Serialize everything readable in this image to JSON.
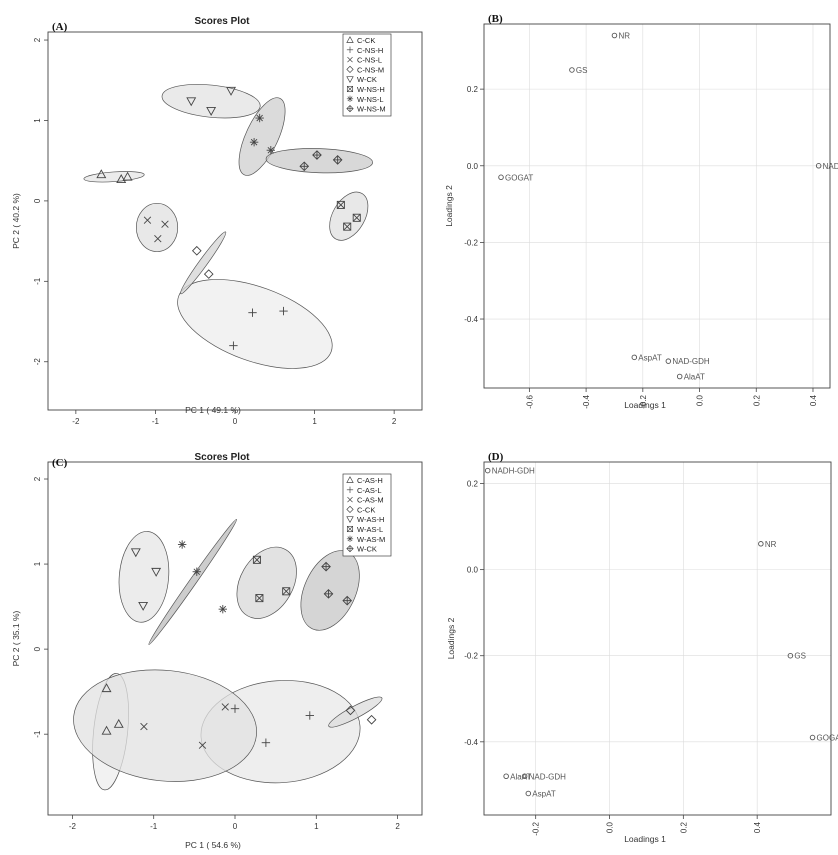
{
  "chart_data": [
    {
      "panel": "(A)",
      "type": "scatter",
      "title": "Scores Plot",
      "xlabel": "PC 1 ( 49.1 %)",
      "ylabel": "PC 2 ( 40.2 %)",
      "xlim": [
        -2.35,
        2.35
      ],
      "ylim": [
        -2.6,
        2.1
      ],
      "xticks": [
        -2,
        -1,
        0,
        1,
        2
      ],
      "yticks": [
        -2,
        -1,
        0,
        1,
        2
      ],
      "grid": false,
      "legend_position": "top-right",
      "legend": [
        {
          "label": "C-CK",
          "marker": "triangle"
        },
        {
          "label": "C-NS-H",
          "marker": "plus"
        },
        {
          "label": "C-NS-L",
          "marker": "cross"
        },
        {
          "label": "C-NS-M",
          "marker": "diamond"
        },
        {
          "label": "W-CK",
          "marker": "triangle-down"
        },
        {
          "label": "W-NS-H",
          "marker": "boxed-x"
        },
        {
          "label": "W-NS-L",
          "marker": "star"
        },
        {
          "label": "W-NS-M",
          "marker": "boxed-diamond"
        }
      ],
      "series": [
        {
          "name": "C-CK",
          "marker": "triangle",
          "points": [
            [
              -1.68,
              0.33
            ],
            [
              -1.43,
              0.27
            ],
            [
              -1.35,
              0.3
            ]
          ],
          "ellipse": {
            "cx": -1.52,
            "cy": 0.3,
            "rx": 0.38,
            "ry": 0.06,
            "angle": -4,
            "fill": "#e6e6e6"
          }
        },
        {
          "name": "C-NS-H",
          "marker": "plus",
          "points": [
            [
              -0.02,
              -1.8
            ],
            [
              0.22,
              -1.39
            ],
            [
              0.61,
              -1.37
            ]
          ],
          "ellipse": {
            "cx": 0.25,
            "cy": -1.53,
            "rx": 1.02,
            "ry": 0.46,
            "angle": 20,
            "fill": "#eeeeee"
          }
        },
        {
          "name": "C-NS-L",
          "marker": "cross",
          "points": [
            [
              -1.1,
              -0.24
            ],
            [
              -0.97,
              -0.47
            ],
            [
              -0.88,
              -0.29
            ]
          ],
          "ellipse": {
            "cx": -0.98,
            "cy": -0.33,
            "rx": 0.26,
            "ry": 0.3,
            "angle": 0,
            "fill": "#e0e0e0"
          }
        },
        {
          "name": "C-NS-M",
          "marker": "diamond",
          "points": [
            [
              -0.48,
              -0.62
            ],
            [
              -0.33,
              -0.91
            ]
          ],
          "ellipse": {
            "cx": -0.4,
            "cy": -0.77,
            "rx": 0.48,
            "ry": 0.05,
            "angle": -54,
            "fill": "#d4d4d4"
          }
        },
        {
          "name": "W-CK",
          "marker": "triangle-down",
          "points": [
            [
              -0.55,
              1.24
            ],
            [
              -0.3,
              1.12
            ],
            [
              -0.05,
              1.37
            ]
          ],
          "ellipse": {
            "cx": -0.3,
            "cy": 1.24,
            "rx": 0.62,
            "ry": 0.2,
            "angle": 6,
            "fill": "#e3e3e3"
          }
        },
        {
          "name": "W-NS-H",
          "marker": "boxed-x",
          "points": [
            [
              1.33,
              -0.05
            ],
            [
              1.41,
              -0.32
            ],
            [
              1.53,
              -0.21
            ]
          ],
          "ellipse": {
            "cx": 1.43,
            "cy": -0.19,
            "rx": 0.33,
            "ry": 0.2,
            "angle": -60,
            "fill": "#e0e0e0"
          }
        },
        {
          "name": "W-NS-L",
          "marker": "star",
          "points": [
            [
              0.31,
              1.03
            ],
            [
              0.45,
              0.63
            ],
            [
              0.24,
              0.73
            ]
          ],
          "ellipse": {
            "cx": 0.34,
            "cy": 0.8,
            "rx": 0.53,
            "ry": 0.2,
            "angle": -65,
            "fill": "#cfcfcf"
          }
        },
        {
          "name": "W-NS-M",
          "marker": "boxed-diamond",
          "points": [
            [
              0.87,
              0.43
            ],
            [
              1.03,
              0.57
            ],
            [
              1.29,
              0.51
            ]
          ],
          "ellipse": {
            "cx": 1.06,
            "cy": 0.5,
            "rx": 0.67,
            "ry": 0.15,
            "angle": 2,
            "fill": "#cbcbcb"
          }
        }
      ]
    },
    {
      "panel": "(B)",
      "type": "scatter",
      "xlabel": "Loadings 1",
      "ylabel": "Loadings 2",
      "xlim": [
        -0.76,
        0.46
      ],
      "ylim": [
        -0.58,
        0.37
      ],
      "xticks": [
        -0.6,
        -0.4,
        -0.2,
        0.0,
        0.2,
        0.4
      ],
      "xtick_labels": [
        "-0.6",
        "-0.4",
        "-0.2",
        "0.0",
        "0.2",
        "0.4"
      ],
      "yticks": [
        0.2,
        0.0,
        -0.2,
        -0.4
      ],
      "ytick_labels": [
        "0.2",
        "0.0",
        "-0.2",
        "-0.4"
      ],
      "grid": true,
      "points": [
        {
          "label": "NR",
          "x": -0.3,
          "y": 0.34
        },
        {
          "label": "GS",
          "x": -0.45,
          "y": 0.25
        },
        {
          "label": "GOGAT",
          "x": -0.7,
          "y": -0.03
        },
        {
          "label": "NADH-GDH",
          "x": 0.42,
          "y": 0.0
        },
        {
          "label": "AspAT",
          "x": -0.23,
          "y": -0.5
        },
        {
          "label": "NAD-GDH",
          "x": -0.11,
          "y": -0.51
        },
        {
          "label": "AlaAT",
          "x": -0.07,
          "y": -0.55
        }
      ]
    },
    {
      "panel": "(C)",
      "type": "scatter",
      "title": "Scores Plot",
      "xlabel": "PC 1 ( 54.6 %)",
      "ylabel": "PC 2 ( 35.1 %)",
      "xlim": [
        -2.3,
        2.3
      ],
      "ylim": [
        -1.95,
        2.2
      ],
      "xticks": [
        -2,
        -1,
        0,
        1,
        2
      ],
      "yticks": [
        -1,
        0,
        1,
        2
      ],
      "grid": false,
      "legend_position": "top-right",
      "legend": [
        {
          "label": "C-AS-H",
          "marker": "triangle"
        },
        {
          "label": "C-AS-L",
          "marker": "plus"
        },
        {
          "label": "C-AS-M",
          "marker": "cross"
        },
        {
          "label": "C-CK",
          "marker": "diamond"
        },
        {
          "label": "W-AS-H",
          "marker": "triangle-down"
        },
        {
          "label": "W-AS-L",
          "marker": "boxed-x"
        },
        {
          "label": "W-AS-M",
          "marker": "star"
        },
        {
          "label": "W-CK",
          "marker": "boxed-diamond"
        }
      ],
      "series": [
        {
          "name": "C-AS-H",
          "marker": "triangle",
          "points": [
            [
              -1.58,
              -0.46
            ],
            [
              -1.43,
              -0.88
            ],
            [
              -1.58,
              -0.96
            ]
          ],
          "ellipse": {
            "cx": -1.53,
            "cy": -0.97,
            "rx": 0.72,
            "ry": 0.2,
            "angle": -84,
            "fill": "#eeeeee"
          }
        },
        {
          "name": "C-AS-L",
          "marker": "plus",
          "points": [
            [
              0.0,
              -0.7
            ],
            [
              0.92,
              -0.78
            ],
            [
              0.38,
              -1.1
            ]
          ],
          "ellipse": {
            "cx": 0.56,
            "cy": -0.97,
            "rx": 0.98,
            "ry": 0.6,
            "angle": -4,
            "fill": "#e8e8e8"
          }
        },
        {
          "name": "C-AS-M",
          "marker": "cross",
          "points": [
            [
              -1.12,
              -0.91
            ],
            [
              -0.12,
              -0.68
            ],
            [
              -0.4,
              -1.13
            ]
          ],
          "ellipse": {
            "cx": -0.86,
            "cy": -0.9,
            "rx": 1.13,
            "ry": 0.65,
            "angle": 6,
            "fill": "#e2e2e2"
          }
        },
        {
          "name": "C-CK",
          "marker": "diamond",
          "points": [
            [
              1.42,
              -0.72
            ],
            [
              1.68,
              -0.83
            ]
          ],
          "ellipse": {
            "cx": 1.48,
            "cy": -0.74,
            "rx": 0.37,
            "ry": 0.07,
            "angle": -28,
            "fill": "#dcdcdc"
          }
        },
        {
          "name": "W-AS-H",
          "marker": "triangle-down",
          "points": [
            [
              -1.22,
              1.14
            ],
            [
              -0.97,
              0.91
            ],
            [
              -1.13,
              0.51
            ]
          ],
          "ellipse": {
            "cx": -1.12,
            "cy": 0.85,
            "rx": 0.56,
            "ry": 0.29,
            "angle": -85,
            "fill": "#e6e6e6"
          }
        },
        {
          "name": "W-AS-L",
          "marker": "boxed-x",
          "points": [
            [
              0.27,
              1.05
            ],
            [
              0.3,
              0.6
            ],
            [
              0.63,
              0.68
            ]
          ],
          "ellipse": {
            "cx": 0.39,
            "cy": 0.78,
            "rx": 0.47,
            "ry": 0.31,
            "angle": -60,
            "fill": "#d8d8d8"
          }
        },
        {
          "name": "W-AS-M",
          "marker": "star",
          "points": [
            [
              -0.65,
              1.23
            ],
            [
              -0.47,
              0.91
            ],
            [
              -0.15,
              0.47
            ]
          ],
          "ellipse": {
            "cx": -0.52,
            "cy": 0.79,
            "rx": 0.94,
            "ry": 0.04,
            "angle": -55,
            "fill": "#bcbcbc"
          }
        },
        {
          "name": "W-CK",
          "marker": "boxed-diamond",
          "points": [
            [
              1.12,
              0.97
            ],
            [
              1.15,
              0.65
            ],
            [
              1.38,
              0.57
            ]
          ],
          "ellipse": {
            "cx": 1.17,
            "cy": 0.69,
            "rx": 0.52,
            "ry": 0.3,
            "angle": -65,
            "fill": "#c7c7c7"
          }
        }
      ]
    },
    {
      "panel": "(D)",
      "type": "scatter",
      "xlabel": "Loadings 1",
      "ylabel": "Loadings 2",
      "xlim": [
        -0.34,
        0.6
      ],
      "ylim": [
        -0.57,
        0.25
      ],
      "xticks": [
        -0.2,
        0.0,
        0.2,
        0.4
      ],
      "xtick_labels": [
        "-0.2",
        "0.0",
        "0.2",
        "0.4"
      ],
      "yticks": [
        0.2,
        0.0,
        -0.2,
        -0.4
      ],
      "ytick_labels": [
        "0.2",
        "0.0",
        "-0.2",
        "-0.4"
      ],
      "grid": true,
      "points": [
        {
          "label": "NADH-GDH",
          "x": -0.33,
          "y": 0.23
        },
        {
          "label": "NR",
          "x": 0.41,
          "y": 0.06
        },
        {
          "label": "GS",
          "x": 0.49,
          "y": -0.2
        },
        {
          "label": "GOGAT",
          "x": 0.55,
          "y": -0.39
        },
        {
          "label": "AlaAT",
          "x": -0.28,
          "y": -0.48
        },
        {
          "label": "NAD-GDH",
          "x": -0.23,
          "y": -0.48
        },
        {
          "label": "AspAT",
          "x": -0.22,
          "y": -0.52
        }
      ]
    }
  ]
}
